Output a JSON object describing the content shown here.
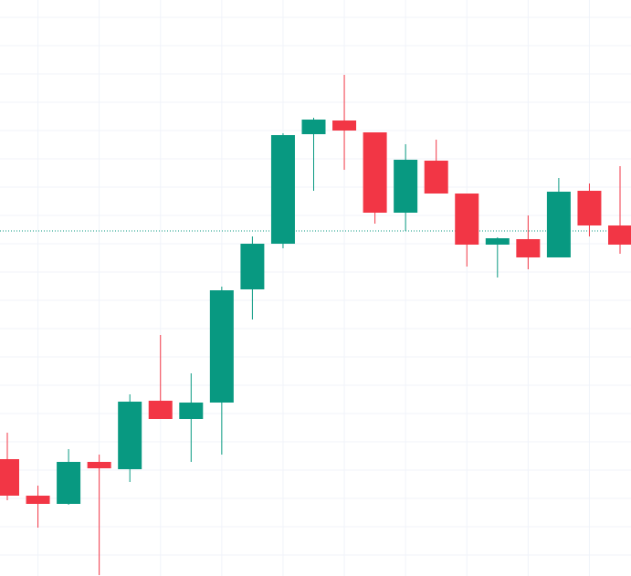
{
  "chart_data": {
    "type": "candlestick",
    "categories": [
      null,
      null,
      null,
      null,
      null,
      null,
      null,
      null,
      null,
      null,
      null,
      null,
      null,
      null,
      null,
      null,
      null,
      null,
      null,
      null,
      null
    ],
    "open": [
      128,
      88,
      79,
      125,
      117,
      192,
      172,
      190,
      314,
      364,
      484,
      499,
      486,
      398,
      455,
      419,
      363,
      369,
      349,
      422,
      384
    ],
    "high": [
      157,
      99,
      139,
      133,
      199,
      264,
      222,
      317,
      372,
      485,
      502,
      549,
      486,
      473,
      478,
      419,
      371,
      395,
      436,
      430,
      449
    ],
    "low": [
      83,
      53,
      78,
      1,
      103,
      172,
      125,
      133,
      281,
      359,
      422,
      445,
      386,
      378,
      419,
      339,
      327,
      336,
      349,
      372,
      353
    ],
    "close": [
      88,
      79,
      125,
      118,
      191,
      172,
      190,
      313,
      364,
      483,
      500,
      488,
      398,
      456,
      419,
      363,
      370,
      349,
      421,
      384,
      363
    ],
    "up_color": "#089981",
    "down_color": "#f23645",
    "ylim": [
      0,
      631
    ],
    "yticks": [
      612,
      581,
      550,
      519,
      488,
      457,
      426,
      395,
      364,
      333,
      302,
      271,
      240,
      209,
      178,
      147,
      116,
      85,
      54,
      23
    ],
    "grid": true,
    "price_line": 378,
    "price_line_color": "#089981"
  }
}
